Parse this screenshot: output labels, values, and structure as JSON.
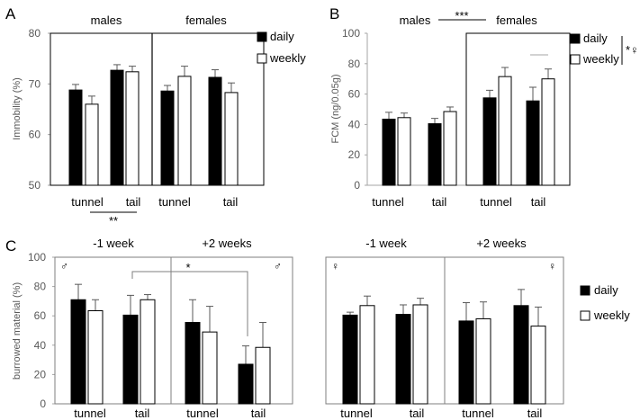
{
  "legend": {
    "daily": "daily",
    "weekly": "weekly"
  },
  "colors": {
    "daily": "#000000",
    "weekly": "#ffffff",
    "frame": "#000000",
    "frame_light": "#7f7f7f",
    "axis": "#a6a6a6"
  },
  "chart_data": [
    {
      "id": "A",
      "type": "bar",
      "panel_label": "A",
      "ylabel": "Immobility (%)",
      "ylim": [
        50,
        80
      ],
      "yticks": [
        50,
        60,
        70,
        80
      ],
      "categories": [
        "tunnel",
        "tail",
        "tunnel",
        "tail"
      ],
      "groups": [
        "males",
        "females"
      ],
      "series": [
        {
          "name": "daily",
          "values": [
            68.8,
            72.7,
            68.6,
            71.3
          ],
          "errors": [
            1.1,
            1.1,
            1.1,
            1.5
          ]
        },
        {
          "name": "weekly",
          "values": [
            66.0,
            72.4,
            71.5,
            68.3
          ],
          "errors": [
            1.6,
            1.1,
            2.0,
            1.9
          ]
        }
      ],
      "annotations": [
        {
          "text": "**",
          "between": "tunnel vs tail"
        }
      ]
    },
    {
      "id": "B",
      "type": "bar",
      "panel_label": "B",
      "ylabel": "FCM (ng/0.05g)",
      "ylim": [
        0,
        100
      ],
      "yticks": [
        0,
        20,
        40,
        60,
        80,
        100
      ],
      "categories": [
        "tunnel",
        "tail",
        "tunnel",
        "tail"
      ],
      "groups": [
        "males",
        "females"
      ],
      "series": [
        {
          "name": "daily",
          "values": [
            43.5,
            40.5,
            57.5,
            55.5
          ],
          "errors": [
            4.5,
            3.5,
            5.0,
            9.0
          ]
        },
        {
          "name": "weekly",
          "values": [
            44.5,
            48.5,
            71.5,
            70.0
          ],
          "errors": [
            3.0,
            3.0,
            6.0,
            6.5
          ]
        }
      ],
      "annotations": [
        {
          "text": "***",
          "between": "males vs females"
        },
        {
          "text": "*♀",
          "between": "daily vs weekly"
        }
      ]
    },
    {
      "id": "C1",
      "type": "bar",
      "panel_label": "C",
      "ylabel": "burrowed material (%)",
      "ylim": [
        0,
        100
      ],
      "yticks": [
        0,
        20,
        40,
        60,
        80,
        100
      ],
      "categories": [
        "tunnel",
        "tail",
        "tunnel",
        "tail"
      ],
      "groups": [
        "-1 week",
        "+2 weeks"
      ],
      "sex_symbols": [
        "♂",
        "♂"
      ],
      "series": [
        {
          "name": "daily",
          "values": [
            71.0,
            60.5,
            55.5,
            27.0
          ],
          "errors": [
            10.5,
            13.5,
            15.5,
            12.5
          ]
        },
        {
          "name": "weekly",
          "values": [
            63.5,
            71.0,
            49.0,
            38.5
          ],
          "errors": [
            7.5,
            3.5,
            17.5,
            17.0
          ]
        }
      ],
      "annotations": [
        {
          "text": "*",
          "between": "-1 week tail vs +2 weeks tail (daily)"
        }
      ]
    },
    {
      "id": "C2",
      "type": "bar",
      "categories": [
        "tunnel",
        "tail",
        "tunnel",
        "tail"
      ],
      "groups": [
        "-1 week",
        "+2 weeks"
      ],
      "sex_symbols": [
        "♀",
        "♀"
      ],
      "ylim": [
        0,
        100
      ],
      "series": [
        {
          "name": "daily",
          "values": [
            60.5,
            61.0,
            56.5,
            67.0
          ],
          "errors": [
            2.0,
            6.5,
            12.5,
            11.0
          ]
        },
        {
          "name": "weekly",
          "values": [
            67.0,
            67.5,
            58.0,
            53.0
          ],
          "errors": [
            6.5,
            4.5,
            11.5,
            13.0
          ]
        }
      ]
    }
  ]
}
